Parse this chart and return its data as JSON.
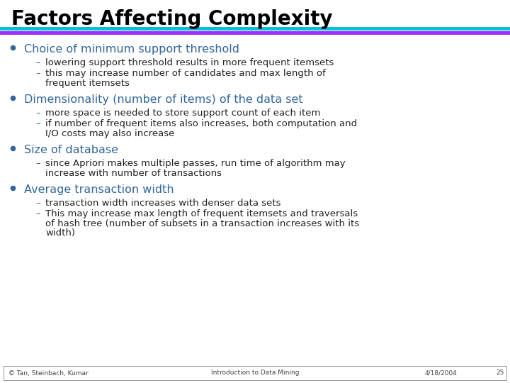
{
  "title": "Factors Affecting Complexity",
  "title_color": "#000000",
  "title_fontsize": 20,
  "bg_color": "#ffffff",
  "bar1_color": "#00BFDF",
  "bar2_color": "#9B30FF",
  "bullet_color": "#336699",
  "sub_color": "#336699",
  "text_color": "#222222",
  "footer_color": "#444444",
  "bullets": [
    {
      "text": "Choice of minimum support threshold",
      "subs": [
        "lowering support threshold results in more frequent itemsets",
        "this may increase number of candidates and max length of\nfrequent itemsets"
      ]
    },
    {
      "text": "Dimensionality (number of items) of the data set",
      "subs": [
        "more space is needed to store support count of each item",
        "if number of frequent items also increases, both computation and\nI/O costs may also increase"
      ]
    },
    {
      "text": "Size of database",
      "subs": [
        "since Apriori makes multiple passes, run time of algorithm may\nincrease with number of transactions"
      ]
    },
    {
      "text": "Average transaction width",
      "subs": [
        "transaction width increases with denser data sets",
        "This may increase max length of frequent itemsets and traversals\nof hash tree (number of subsets in a transaction increases with its\nwidth)"
      ]
    }
  ],
  "footer_left": "© Tan, Steinbach, Kumar",
  "footer_center": "Introduction to Data Mining",
  "footer_right": "4/18/2004",
  "footer_page": "25"
}
